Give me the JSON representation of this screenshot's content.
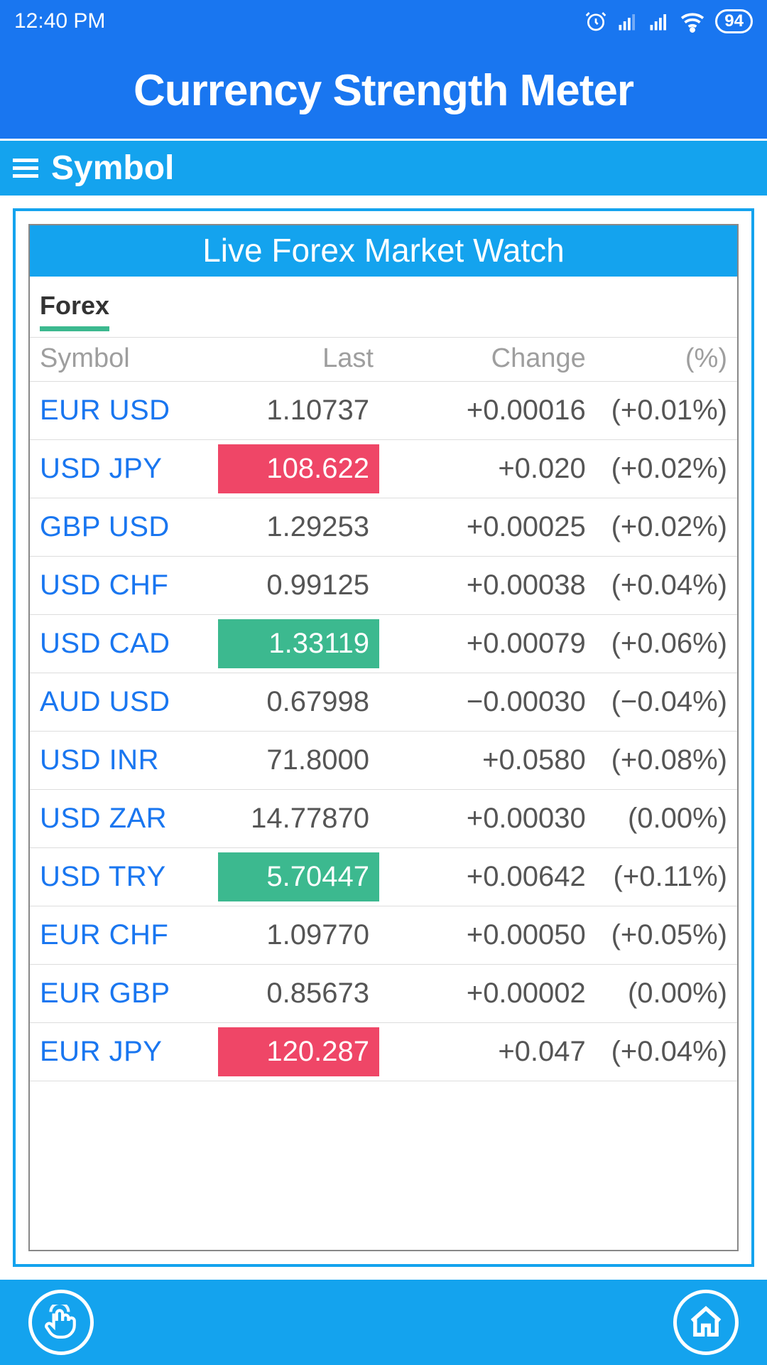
{
  "statusbar": {
    "time": "12:40 PM",
    "battery": "94"
  },
  "header": {
    "title": "Currency Strength Meter"
  },
  "subheader": {
    "label": "Symbol"
  },
  "card": {
    "title": "Live Forex Market Watch",
    "tab": "Forex"
  },
  "columns": {
    "symbol": "Symbol",
    "last": "Last",
    "change": "Change",
    "pct": "(%)"
  },
  "colors": {
    "primary_blue": "#1976f0",
    "accent_blue": "#14a3ee",
    "highlight_red": "#ef4667",
    "highlight_green": "#3cb98f",
    "text_grey": "#555555",
    "header_grey": "#9e9e9e"
  },
  "rows": [
    {
      "symbol": "EUR USD",
      "last": "1.10737",
      "highlight": "",
      "change": "+0.00016",
      "pct": "(+0.01%)"
    },
    {
      "symbol": "USD JPY",
      "last": "108.622",
      "highlight": "red",
      "change": "+0.020",
      "pct": "(+0.02%)"
    },
    {
      "symbol": "GBP USD",
      "last": "1.29253",
      "highlight": "",
      "change": "+0.00025",
      "pct": "(+0.02%)"
    },
    {
      "symbol": "USD CHF",
      "last": "0.99125",
      "highlight": "",
      "change": "+0.00038",
      "pct": "(+0.04%)"
    },
    {
      "symbol": "USD CAD",
      "last": "1.33119",
      "highlight": "green",
      "change": "+0.00079",
      "pct": "(+0.06%)"
    },
    {
      "symbol": "AUD USD",
      "last": "0.67998",
      "highlight": "",
      "change": "−0.00030",
      "pct": "(−0.04%)"
    },
    {
      "symbol": "USD INR",
      "last": "71.8000",
      "highlight": "",
      "change": "+0.0580",
      "pct": "(+0.08%)"
    },
    {
      "symbol": "USD ZAR",
      "last": "14.77870",
      "highlight": "",
      "change": "+0.00030",
      "pct": "(0.00%)"
    },
    {
      "symbol": "USD TRY",
      "last": "5.70447",
      "highlight": "green",
      "change": "+0.00642",
      "pct": "(+0.11%)"
    },
    {
      "symbol": "EUR CHF",
      "last": "1.09770",
      "highlight": "",
      "change": "+0.00050",
      "pct": "(+0.05%)"
    },
    {
      "symbol": "EUR GBP",
      "last": "0.85673",
      "highlight": "",
      "change": "+0.00002",
      "pct": "(0.00%)"
    },
    {
      "symbol": "EUR JPY",
      "last": "120.287",
      "highlight": "red",
      "change": "+0.047",
      "pct": "(+0.04%)"
    }
  ]
}
